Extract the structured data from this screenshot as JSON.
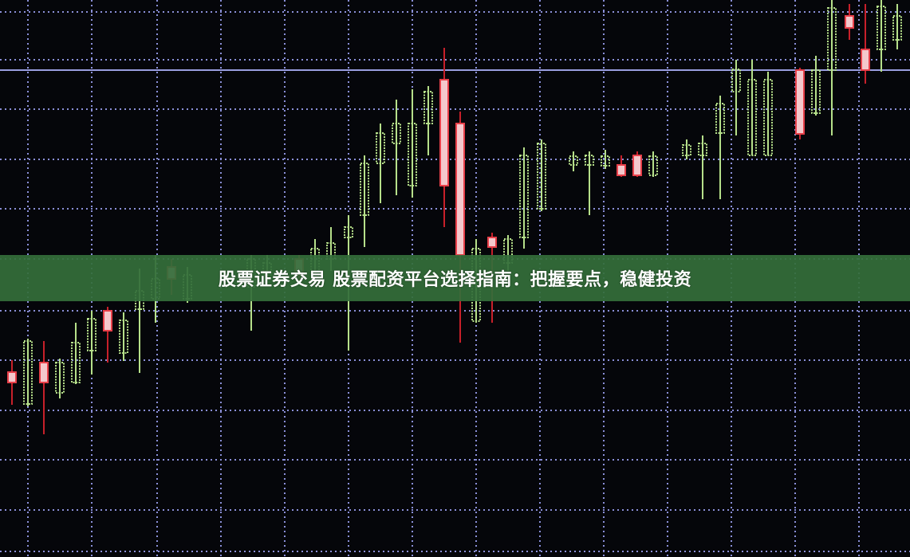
{
  "banner": {
    "title": "股票证券交易 股票配资平台选择指南：把握要点，稳健投资"
  },
  "colors": {
    "background": "#05060a",
    "grid": "#8a8fd8",
    "bull_candle": "#b6e08a",
    "bear_candle": "#e8404a",
    "banner": "#346e3a"
  }
}
